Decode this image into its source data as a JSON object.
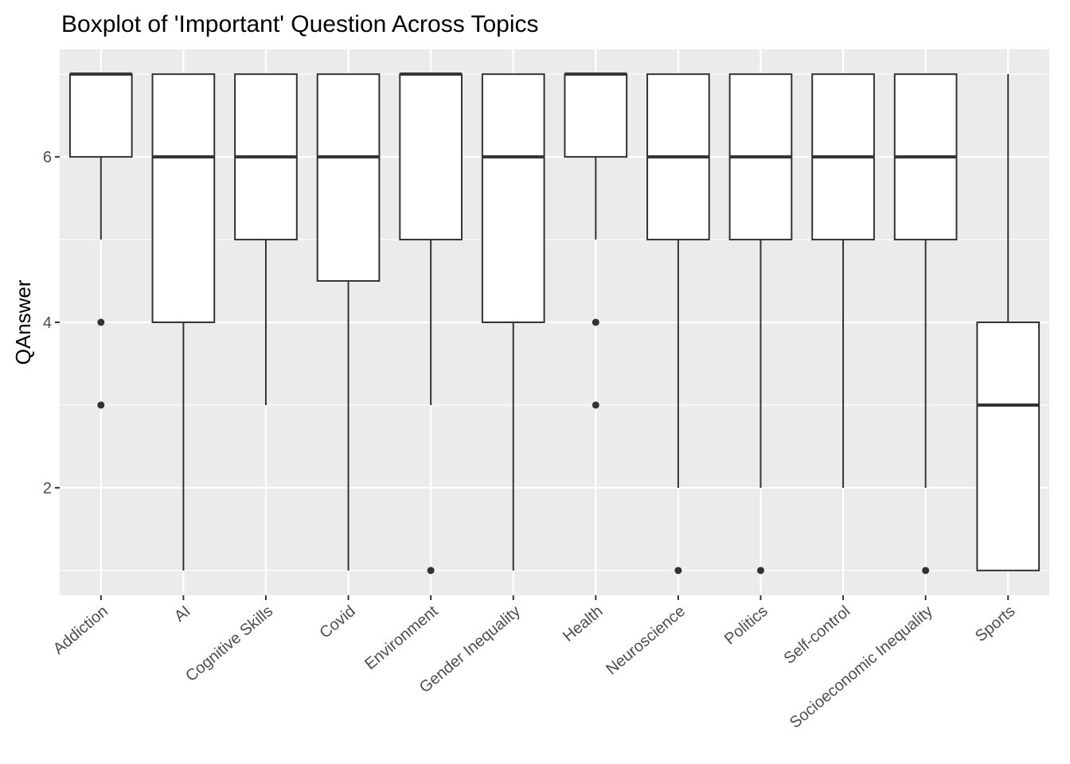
{
  "chart_data": {
    "type": "boxplot",
    "title": "Boxplot of 'Important' Question Across Topics",
    "xlabel": "",
    "ylabel": "QAnswer",
    "ylim": [
      0.7,
      7.3
    ],
    "yticks": [
      2,
      4,
      6
    ],
    "grid": true,
    "categories": [
      "Addiction",
      "AI",
      "Cognitive Skills",
      "Covid",
      "Environment",
      "Gender Inequality",
      "Health",
      "Neuroscience",
      "Politics",
      "Self-control",
      "Socioeconomic Inequality",
      "Sports"
    ],
    "boxes": [
      {
        "category": "Addiction",
        "whisker_low": 5,
        "q1": 6,
        "median": 7,
        "q3": 7,
        "whisker_high": 7,
        "outliers": [
          4,
          3
        ]
      },
      {
        "category": "AI",
        "whisker_low": 1,
        "q1": 4,
        "median": 6,
        "q3": 7,
        "whisker_high": 7,
        "outliers": []
      },
      {
        "category": "Cognitive Skills",
        "whisker_low": 3,
        "q1": 5,
        "median": 6,
        "q3": 7,
        "whisker_high": 7,
        "outliers": []
      },
      {
        "category": "Covid",
        "whisker_low": 1,
        "q1": 4.5,
        "median": 6,
        "q3": 7,
        "whisker_high": 7,
        "outliers": []
      },
      {
        "category": "Environment",
        "whisker_low": 3,
        "q1": 5,
        "median": 7,
        "q3": 7,
        "whisker_high": 7,
        "outliers": [
          1
        ]
      },
      {
        "category": "Gender Inequality",
        "whisker_low": 1,
        "q1": 4,
        "median": 6,
        "q3": 7,
        "whisker_high": 7,
        "outliers": []
      },
      {
        "category": "Health",
        "whisker_low": 5,
        "q1": 6,
        "median": 7,
        "q3": 7,
        "whisker_high": 7,
        "outliers": [
          4,
          3
        ]
      },
      {
        "category": "Neuroscience",
        "whisker_low": 2,
        "q1": 5,
        "median": 6,
        "q3": 7,
        "whisker_high": 7,
        "outliers": [
          1
        ]
      },
      {
        "category": "Politics",
        "whisker_low": 2,
        "q1": 5,
        "median": 6,
        "q3": 7,
        "whisker_high": 7,
        "outliers": [
          1
        ]
      },
      {
        "category": "Self-control",
        "whisker_low": 2,
        "q1": 5,
        "median": 6,
        "q3": 7,
        "whisker_high": 7,
        "outliers": []
      },
      {
        "category": "Socioeconomic Inequality",
        "whisker_low": 2,
        "q1": 5,
        "median": 6,
        "q3": 7,
        "whisker_high": 7,
        "outliers": [
          1
        ]
      },
      {
        "category": "Sports",
        "whisker_low": 1,
        "q1": 1,
        "median": 3,
        "q3": 4,
        "whisker_high": 7,
        "outliers": []
      }
    ],
    "colors": {
      "panel_background": "#ebebeb",
      "grid": "#ffffff",
      "box_fill": "#ffffff",
      "box_line": "#333333",
      "axis_text": "#4d4d4d",
      "tick": "#333333"
    }
  }
}
